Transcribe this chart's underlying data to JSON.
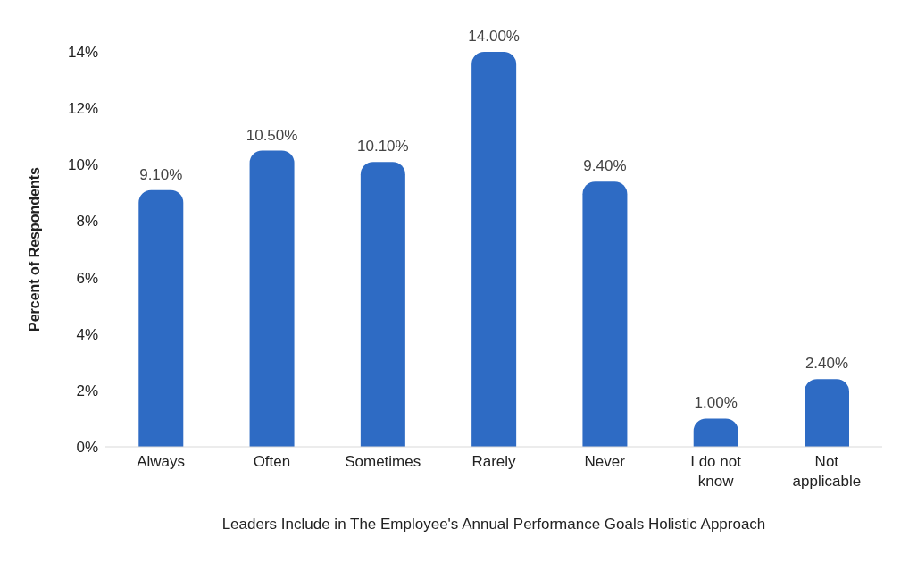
{
  "chart_data": {
    "type": "bar",
    "xlabel": "Leaders Include in The Employee's Annual Performance Goals Holistic Approach",
    "ylabel": "Percent of Respondents",
    "categories": [
      "Always",
      "Often",
      "Sometimes",
      "Rarely",
      "Never",
      "I do not know",
      "Not applicable"
    ],
    "values": [
      9.1,
      10.5,
      10.1,
      14.0,
      9.4,
      1.0,
      2.4
    ],
    "value_labels": [
      "9.10%",
      "10.50%",
      "10.10%",
      "14.00%",
      "9.40%",
      "1.00%",
      "2.40%"
    ],
    "color": "#2e6bc4",
    "ylim": [
      0,
      14
    ],
    "yticks": [
      {
        "value": 0,
        "label": "0%"
      },
      {
        "value": 2,
        "label": "2%"
      },
      {
        "value": 4,
        "label": "4%"
      },
      {
        "value": 6,
        "label": "6%"
      },
      {
        "value": 8,
        "label": "8%"
      },
      {
        "value": 10,
        "label": "10%"
      },
      {
        "value": 12,
        "label": "12%"
      },
      {
        "value": 14,
        "label": "14%"
      }
    ],
    "grid": false
  }
}
